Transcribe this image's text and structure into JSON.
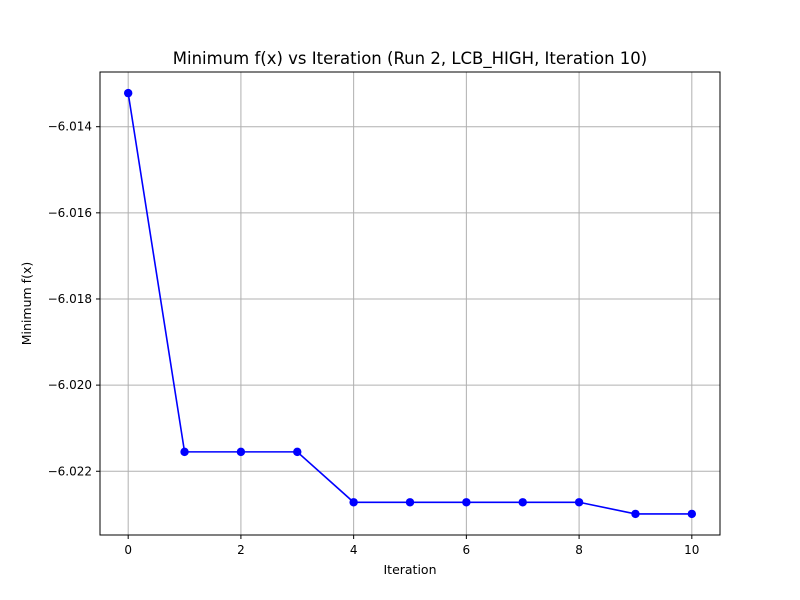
{
  "chart_data": {
    "type": "line",
    "title": "Minimum f(x) vs Iteration (Run 2, LCB_HIGH, Iteration 10)",
    "xlabel": "Iteration",
    "ylabel": "Minimum f(x)",
    "xlim": [
      -0.5,
      10.5
    ],
    "ylim": [
      -6.02348,
      -6.01273
    ],
    "x_ticks": [
      0,
      2,
      4,
      6,
      8,
      10
    ],
    "y_ticks": [
      -6.014,
      -6.016,
      -6.018,
      -6.02,
      -6.022
    ],
    "y_tick_labels": [
      "−6.014",
      "−6.016",
      "−6.018",
      "−6.020",
      "−6.022"
    ],
    "grid": true,
    "series": [
      {
        "color": "#0000ff",
        "marker": "circle",
        "x": [
          0,
          1,
          2,
          3,
          4,
          5,
          6,
          7,
          8,
          9,
          10
        ],
        "y": [
          -6.01322,
          -6.02155,
          -6.02155,
          -6.02155,
          -6.02272,
          -6.02272,
          -6.02272,
          -6.02272,
          -6.02272,
          -6.02299,
          -6.02299
        ]
      }
    ]
  }
}
